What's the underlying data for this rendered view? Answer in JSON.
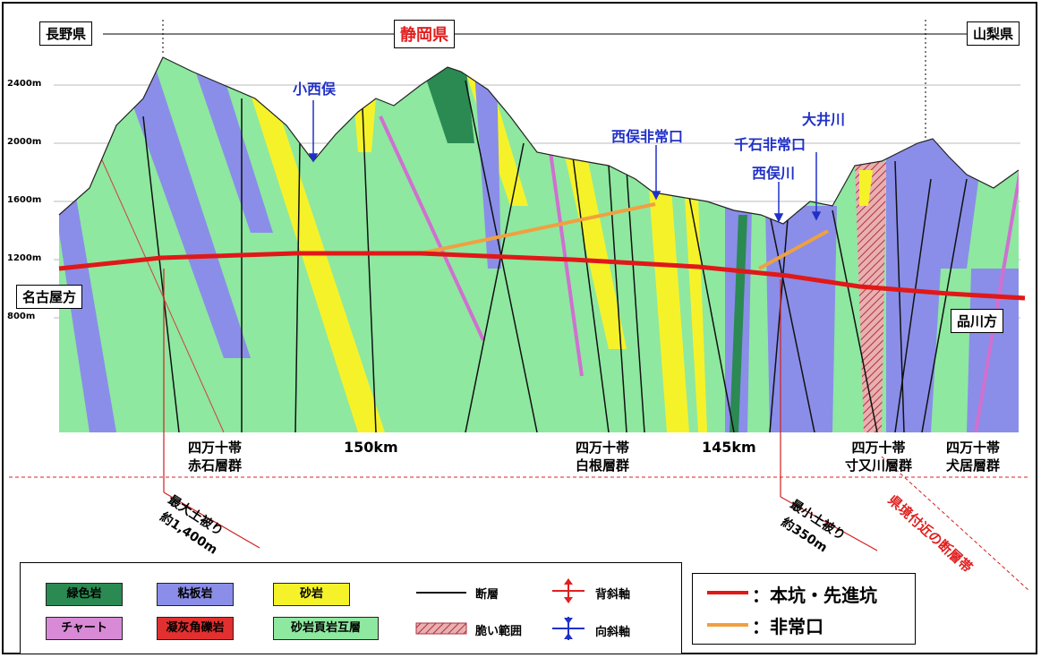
{
  "prefectures": {
    "left": "長野県",
    "center": "静岡県",
    "right": "山梨県"
  },
  "elevation_ticks": [
    "2400m",
    "2000m",
    "1600m",
    "1200m",
    "800m"
  ],
  "place_labels": {
    "konishimata": "小西俣",
    "nishimata_exit": "西俣非常口",
    "senzoku_exit": "千石非常口",
    "nishimata_river": "西俣川",
    "oi_river": "大井川"
  },
  "direction_labels": {
    "nagoya": "名古屋方",
    "shinagawa": "品川方"
  },
  "km_marks": [
    "150km",
    "145km"
  ],
  "strata_groups": [
    {
      "line1": "四万十帯",
      "line2": "赤石層群"
    },
    {
      "line1": "四万十帯",
      "line2": "白根層群"
    },
    {
      "line1": "四万十帯",
      "line2": "寸又川層群"
    },
    {
      "line1": "四万十帯",
      "line2": "犬居層群"
    }
  ],
  "cover": {
    "max_label": "最大土被り",
    "max_value": "約1,400m",
    "min_label": "最小土被り",
    "min_value": "約350m"
  },
  "fault_zone_label": "県境付近の断層帯",
  "legend": {
    "greenstone": "緑色岩",
    "slate": "粘板岩",
    "sandstone": "砂岩",
    "chert": "チャート",
    "tuff_breccia": "凝灰角礫岩",
    "alternation": "砂岩頁岩互層",
    "fault": "断層",
    "weak_zone": "脆い範囲",
    "anticline": "背斜軸",
    "syncline": "向斜軸"
  },
  "legend2": {
    "main_tunnel": "：本坑・先進坑",
    "emergency_exit": "：非常口"
  },
  "colors": {
    "green_base": "#8ee8a0",
    "slate": "#8a8ee8",
    "sandstone": "#f6f22a",
    "greenstone": "#2a8a52",
    "chert": "#d88ad6",
    "tuff": "#e23030",
    "tunnel": "#e01818",
    "exit": "#f0a040",
    "label_blue": "#2030c8",
    "label_red": "#e02020"
  }
}
